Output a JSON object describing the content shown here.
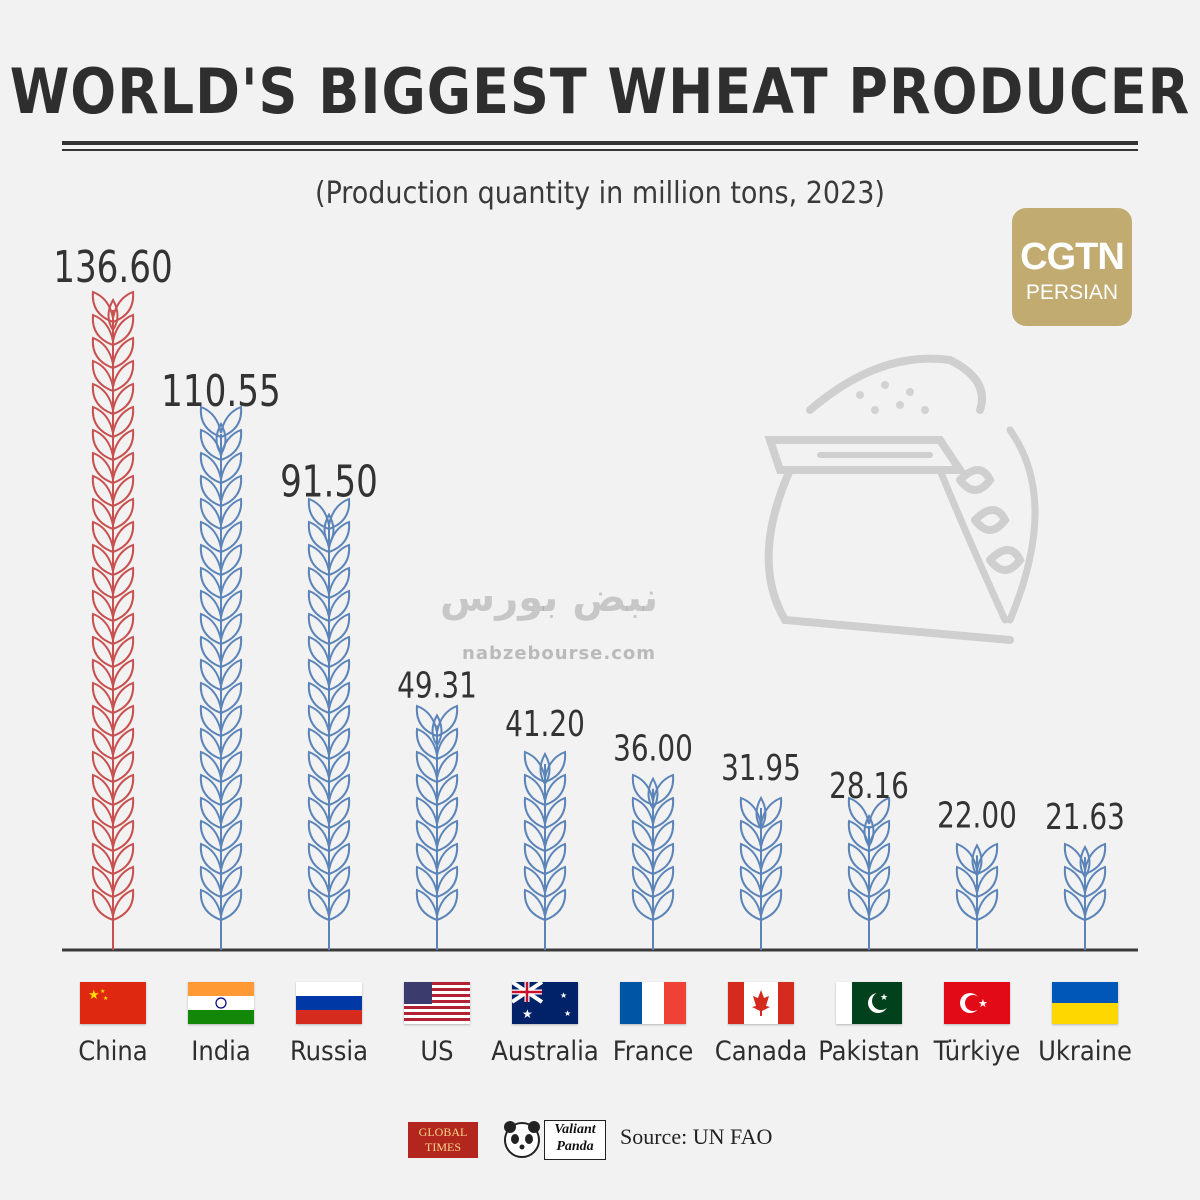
{
  "title": "WORLD'S BIGGEST WHEAT PRODUCER",
  "subtitle": "(Production quantity in million tons, 2023)",
  "logo": {
    "line1": "CGTN",
    "line2": "PERSIAN"
  },
  "watermark": {
    "text": "نبض بورس",
    "url": "nabzebourse.com"
  },
  "footer": {
    "global_times_line1": "GLOBAL",
    "global_times_line2": "TIMES",
    "valiant_panda_line1": "Valiant",
    "valiant_panda_line2": "Panda",
    "source": "Source: UN FAO"
  },
  "colors": {
    "highlight": "#c8504f",
    "bars": "#5b84b8",
    "baseline": "#3a3a3a"
  },
  "chart_data": {
    "type": "bar",
    "title": "WORLD'S BIGGEST WHEAT PRODUCER",
    "subtitle": "(Production quantity in million tons, 2023)",
    "categories": [
      "China",
      "India",
      "Russia",
      "US",
      "Australia",
      "France",
      "Canada",
      "Pakistan",
      "Türkiye",
      "Ukraine"
    ],
    "values": [
      136.6,
      110.55,
      91.5,
      49.31,
      41.2,
      36.0,
      31.95,
      28.16,
      22.0,
      21.63
    ],
    "value_labels": [
      "136.60",
      "110.55",
      "91.50",
      "49.31",
      "41.20",
      "36.00",
      "31.95",
      "28.16",
      "22.00",
      "21.63"
    ],
    "flag_icons": [
      "china-flag-icon",
      "india-flag-icon",
      "russia-flag-icon",
      "us-flag-icon",
      "australia-flag-icon",
      "france-flag-icon",
      "canada-flag-icon",
      "pakistan-flag-icon",
      "turkiye-flag-icon",
      "ukraine-flag-icon"
    ],
    "highlight_index": 0,
    "xlabel": "",
    "ylabel": "",
    "ylim": [
      0,
      136.6
    ],
    "grid": false,
    "legend": "none"
  }
}
